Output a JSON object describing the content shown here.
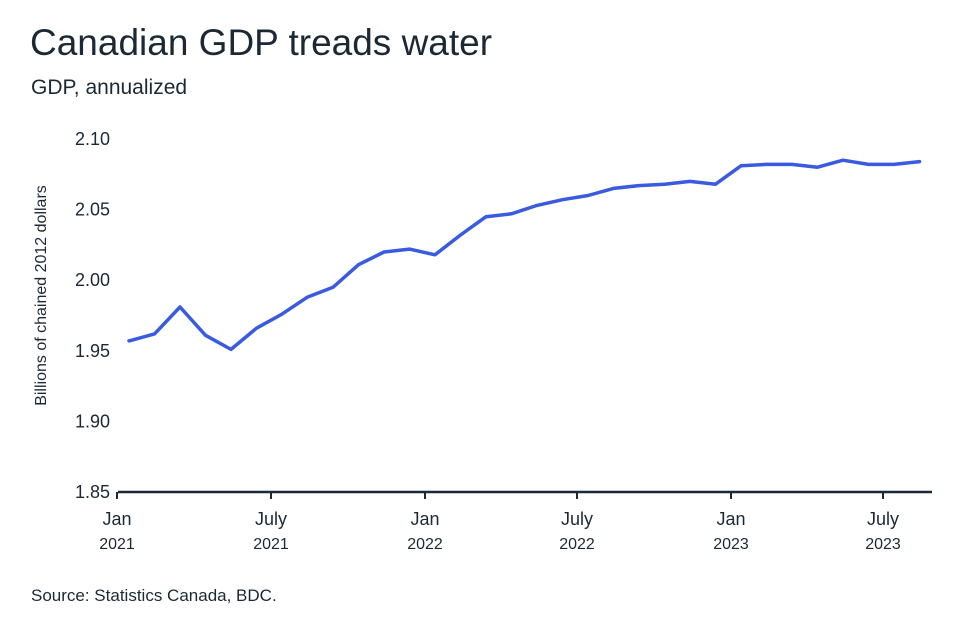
{
  "title": "Canadian GDP treads water",
  "subtitle": "GDP, annualized",
  "source": "Source: Statistics Canada, BDC.",
  "colors": {
    "line": "#3a5ae0",
    "axis": "#1c2833",
    "text": "#1c2833"
  },
  "chart_data": {
    "type": "line",
    "title": "Canadian GDP treads water",
    "subtitle": "GDP, annualized",
    "ylabel": "Billions of chained 2012 dollars",
    "xlabel": "",
    "ylim": [
      1.85,
      2.1
    ],
    "yticks": [
      1.85,
      1.9,
      1.95,
      2.0,
      2.05,
      2.1
    ],
    "ytick_labels": [
      "1.85",
      "1.90",
      "1.95",
      "2.00",
      "2.05",
      "2.10"
    ],
    "xticks": [
      {
        "month": "Jan",
        "year": "2021"
      },
      {
        "month": "July",
        "year": "2021"
      },
      {
        "month": "Jan",
        "year": "2022"
      },
      {
        "month": "July",
        "year": "2022"
      },
      {
        "month": "Jan",
        "year": "2023"
      },
      {
        "month": "July",
        "year": "2023"
      }
    ],
    "grid": false,
    "legend": "none",
    "x": [
      "2021-01",
      "2021-02",
      "2021-03",
      "2021-04",
      "2021-05",
      "2021-06",
      "2021-07",
      "2021-08",
      "2021-09",
      "2021-10",
      "2021-11",
      "2021-12",
      "2022-01",
      "2022-02",
      "2022-03",
      "2022-04",
      "2022-05",
      "2022-06",
      "2022-07",
      "2022-08",
      "2022-09",
      "2022-10",
      "2022-11",
      "2022-12",
      "2023-01",
      "2023-02",
      "2023-03",
      "2023-04",
      "2023-05",
      "2023-06",
      "2023-07",
      "2023-08"
    ],
    "series": [
      {
        "values": [
          1.957,
          1.962,
          1.981,
          1.961,
          1.951,
          1.966,
          1.976,
          1.988,
          1.995,
          2.011,
          2.02,
          2.022,
          2.018,
          2.032,
          2.045,
          2.047,
          2.053,
          2.057,
          2.06,
          2.065,
          2.067,
          2.068,
          2.07,
          2.068,
          2.081,
          2.082,
          2.082,
          2.08,
          2.085,
          2.082,
          2.082,
          2.084
        ]
      }
    ]
  }
}
